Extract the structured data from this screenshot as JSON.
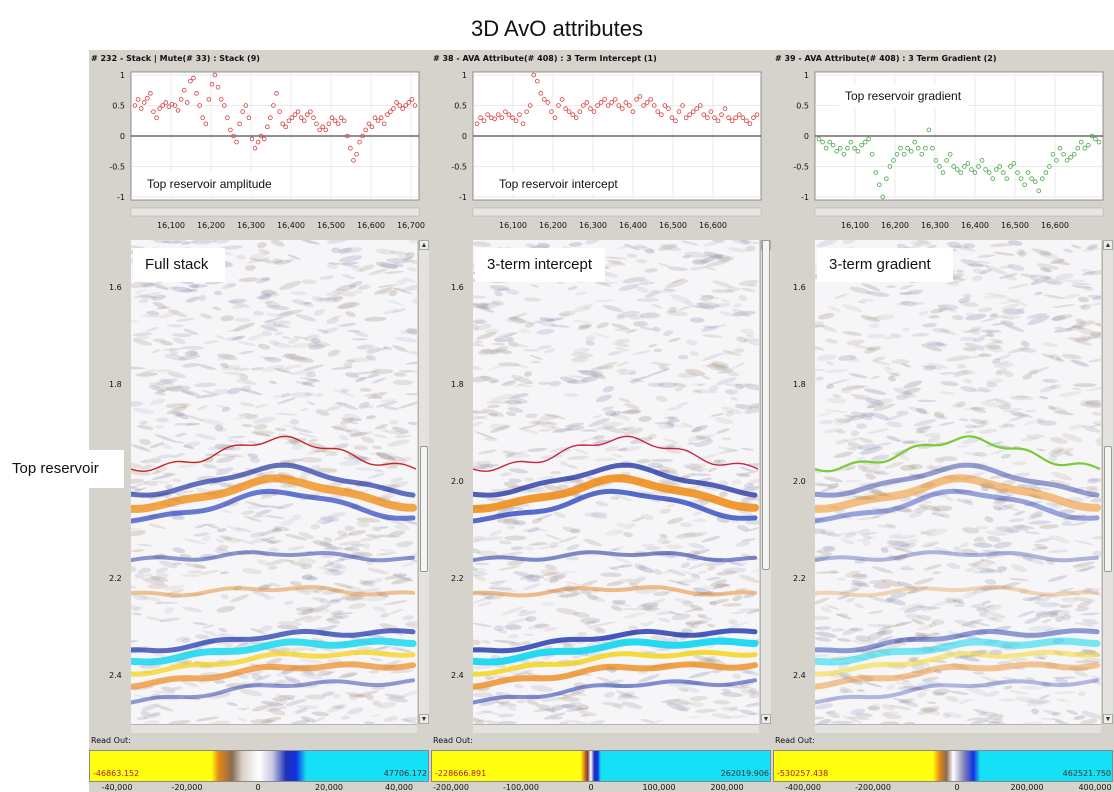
{
  "title": "3D AvO attributes",
  "side_label": "Top reservoir",
  "readout_label": "Read Out:",
  "panels": [
    {
      "header": "# 232 - Stack | Mute(# 33) : Stack (9)",
      "trace_label": "Top reservoir  amplitude",
      "section_label": "Full stack",
      "horizon_color": "#cc2222",
      "trace_color": "#d84040",
      "trace_yticks": [
        "1",
        "0.5",
        "0",
        "-0.5",
        "-1"
      ],
      "trace_xticks": [
        "16,100",
        "16,200",
        "16,300",
        "16,400",
        "16,500",
        "16,600",
        "16,700"
      ],
      "time_ticks": [
        "1.6",
        "1.8",
        "2.0",
        "2.2",
        "2.4"
      ],
      "colorbar": {
        "min": "-46863.152",
        "max": "47706.172",
        "ticks": [
          "-40,000",
          "-20,000",
          "0",
          "20,000",
          "40,000"
        ]
      },
      "chart_data": {
        "type": "scatter",
        "title": "Top reservoir  amplitude",
        "xlabel": "",
        "ylabel": "",
        "xlim": [
          16000,
          16720
        ],
        "ylim": [
          -1.05,
          1.05
        ],
        "grid": true,
        "y": [
          0.5,
          0.6,
          0.45,
          0.55,
          0.62,
          0.7,
          0.4,
          0.3,
          0.45,
          0.5,
          0.55,
          0.48,
          0.52,
          0.5,
          0.42,
          0.6,
          0.75,
          0.55,
          0.9,
          0.95,
          0.7,
          0.5,
          0.3,
          0.2,
          0.6,
          0.85,
          1.0,
          0.8,
          0.6,
          0.5,
          0.3,
          0.1,
          0.0,
          -0.1,
          0.2,
          0.4,
          0.5,
          0.3,
          -0.05,
          -0.2,
          -0.1,
          0.0,
          -0.05,
          0.15,
          0.3,
          0.5,
          0.7,
          0.4,
          0.2,
          0.15,
          0.25,
          0.3,
          0.35,
          0.4,
          0.3,
          0.25,
          0.35,
          0.4,
          0.3,
          0.2,
          0.1,
          0.15,
          0.1,
          0.2,
          0.3,
          0.25,
          0.2,
          0.3,
          0.25,
          0.0,
          -0.2,
          -0.4,
          -0.3,
          -0.1,
          0.0,
          0.1,
          0.2,
          0.15,
          0.3,
          0.25,
          0.3,
          0.2,
          0.35,
          0.4,
          0.45,
          0.55,
          0.5,
          0.45,
          0.5,
          0.55,
          0.6,
          0.5
        ]
      }
    },
    {
      "header": "# 38 - AVA Attribute(# 408) : 3 Term Intercept (1)",
      "trace_label": "Top reservoir  intercept",
      "section_label": "3-term intercept",
      "horizon_color": "#cc2244",
      "trace_color": "#d84040",
      "trace_yticks": [
        "1",
        "0.5",
        "0",
        "-0.5",
        "-1"
      ],
      "trace_xticks": [
        "16,100",
        "16,200",
        "16,300",
        "16,400",
        "16,500",
        "16,600"
      ],
      "time_ticks": [
        "1.6",
        "1.8",
        "2.0",
        "2.2",
        "2.4"
      ],
      "colorbar": {
        "min": "-228666.891",
        "max": "262019.906",
        "ticks": [
          "-200,000",
          "-100,000",
          "0",
          "100,000",
          "200,000"
        ]
      },
      "chart_data": {
        "type": "scatter",
        "title": "Top reservoir  intercept",
        "xlabel": "",
        "ylabel": "",
        "xlim": [
          16000,
          16720
        ],
        "ylim": [
          -1.05,
          1.05
        ],
        "grid": true,
        "y": [
          0.2,
          0.3,
          0.25,
          0.35,
          0.3,
          0.28,
          0.35,
          0.3,
          0.4,
          0.35,
          0.3,
          0.25,
          0.35,
          0.2,
          0.4,
          0.5,
          1.0,
          0.9,
          0.7,
          0.6,
          0.55,
          0.4,
          0.3,
          0.5,
          0.6,
          0.45,
          0.4,
          0.35,
          0.3,
          0.4,
          0.5,
          0.55,
          0.45,
          0.4,
          0.5,
          0.55,
          0.6,
          0.5,
          0.55,
          0.6,
          0.5,
          0.45,
          0.55,
          0.5,
          0.4,
          0.6,
          0.65,
          0.5,
          0.55,
          0.6,
          0.5,
          0.4,
          0.35,
          0.5,
          0.45,
          0.3,
          0.25,
          0.4,
          0.5,
          0.3,
          0.35,
          0.4,
          0.45,
          0.5,
          0.35,
          0.3,
          0.4,
          0.3,
          0.25,
          0.35,
          0.45,
          0.3,
          0.25,
          0.3,
          0.35,
          0.3,
          0.25,
          0.2,
          0.3,
          0.35
        ]
      }
    },
    {
      "header": "# 39 - AVA Attribute(# 408) : 3 Term Gradient (2)",
      "trace_label": "Top reservoir  gradient",
      "section_label": "3-term gradient",
      "horizon_color": "#77cc33",
      "trace_color": "#4aa84a",
      "trace_yticks": [
        "1",
        "0.5",
        "0",
        "-0.5",
        "-1"
      ],
      "trace_xticks": [
        "16,100",
        "16,200",
        "16,300",
        "16,400",
        "16,500",
        "16,600"
      ],
      "time_ticks": [
        "1.6",
        "1.8",
        "2.0",
        "2.2",
        "2.4"
      ],
      "colorbar": {
        "min": "-530257.438",
        "max": "462521.750",
        "ticks": [
          "-400,000",
          "-200,000",
          "0",
          "200,000",
          "400,000"
        ]
      },
      "chart_data": {
        "type": "scatter",
        "title": "Top reservoir  gradient",
        "xlabel": "",
        "ylabel": "",
        "xlim": [
          16000,
          16720
        ],
        "ylim": [
          -1.05,
          1.05
        ],
        "grid": true,
        "y": [
          -0.05,
          -0.1,
          -0.2,
          -0.1,
          -0.15,
          -0.25,
          -0.2,
          -0.3,
          -0.2,
          -0.1,
          -0.2,
          -0.25,
          -0.15,
          -0.1,
          -0.05,
          -0.3,
          -0.6,
          -0.8,
          -1.0,
          -0.7,
          -0.5,
          -0.4,
          -0.3,
          -0.2,
          -0.3,
          -0.2,
          -0.25,
          -0.1,
          -0.2,
          -0.3,
          -0.2,
          0.1,
          -0.2,
          -0.4,
          -0.5,
          -0.6,
          -0.4,
          -0.3,
          -0.5,
          -0.55,
          -0.6,
          -0.5,
          -0.45,
          -0.55,
          -0.6,
          -0.5,
          -0.4,
          -0.55,
          -0.6,
          -0.7,
          -0.55,
          -0.5,
          -0.6,
          -0.7,
          -0.5,
          -0.45,
          -0.6,
          -0.7,
          -0.8,
          -0.6,
          -0.7,
          -0.75,
          -0.9,
          -0.7,
          -0.6,
          -0.5,
          -0.3,
          -0.4,
          -0.2,
          -0.3,
          -0.4,
          -0.35,
          -0.3,
          -0.2,
          -0.1,
          -0.2,
          -0.15,
          0.0,
          -0.05,
          -0.1
        ]
      }
    }
  ]
}
